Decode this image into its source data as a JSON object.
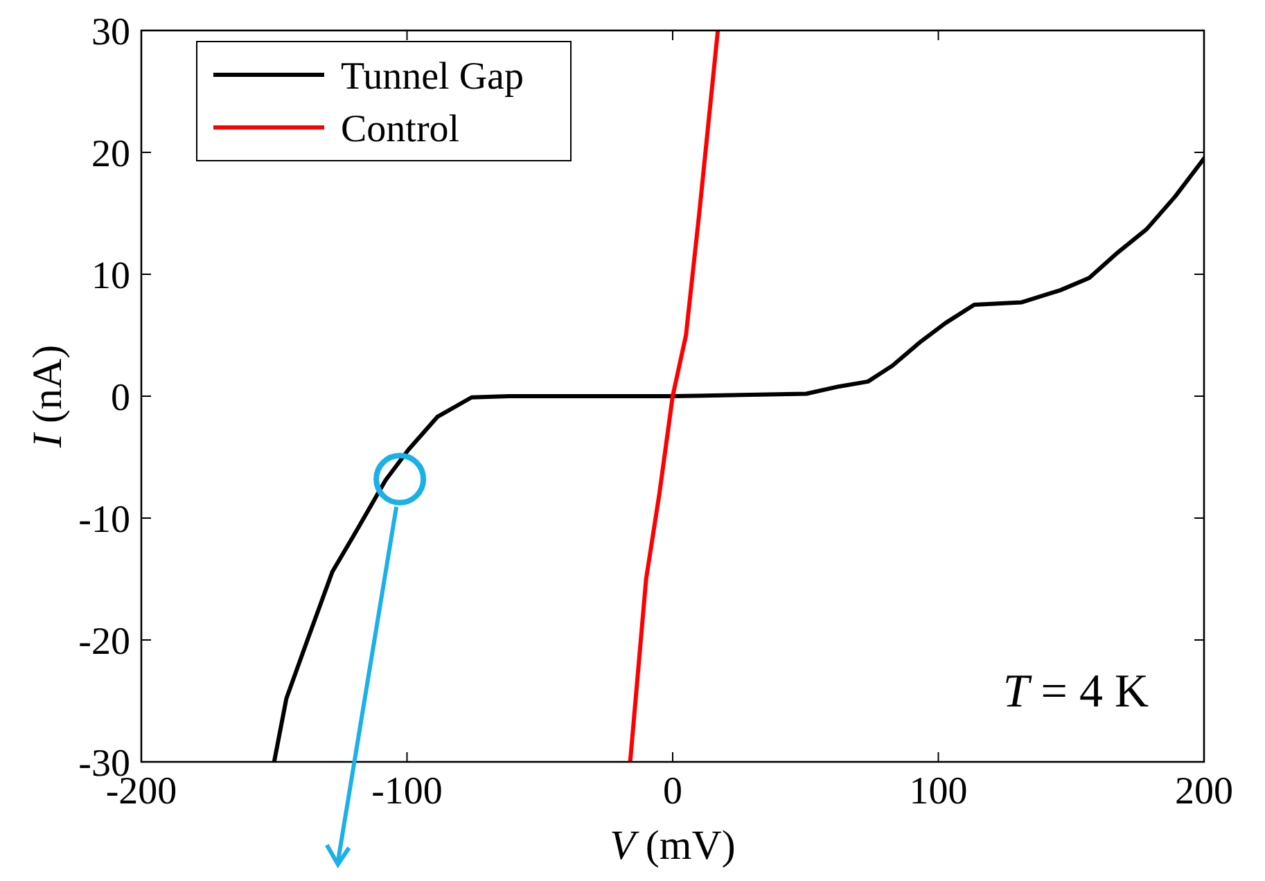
{
  "chart_data": {
    "type": "line",
    "xlabel": "V (mV)",
    "ylabel": "I (nA)",
    "xlim": [
      -200,
      200
    ],
    "ylim": [
      -30,
      30
    ],
    "xticks": [
      -200,
      -100,
      0,
      100,
      200
    ],
    "yticks": [
      -30,
      -20,
      -10,
      0,
      10,
      20,
      30
    ],
    "grid": false,
    "legend": "top left",
    "line_style": "solid",
    "annotations": [
      "T = 4 K"
    ],
    "series": [
      {
        "name": "Tunnel Gap",
        "color": "#000000",
        "x": [
          -150,
          -145.4,
          -137.8,
          -128.1,
          -118.9,
          -108.1,
          -99.5,
          -88.6,
          -75.7,
          -61.6,
          0,
          50.3,
          62.7,
          73.5,
          82.7,
          93.5,
          102.7,
          113.5,
          131.4,
          146,
          156.8,
          167.6,
          178.4,
          189.2,
          200
        ],
        "values": [
          -30,
          -24.8,
          -20.2,
          -14.4,
          -11,
          -6.9,
          -4.4,
          -1.7,
          -0.1,
          0,
          0,
          0.2,
          0.8,
          1.2,
          2.5,
          4.5,
          6,
          7.5,
          7.7,
          8.7,
          9.7,
          11.8,
          13.7,
          16.4,
          19.5
        ]
      },
      {
        "name": "Control",
        "color": "#ff0000",
        "x": [
          -16,
          -10,
          -5,
          0,
          5,
          10,
          17
        ],
        "values": [
          -30,
          -15,
          -8,
          0,
          5,
          15,
          30
        ]
      }
    ]
  }
}
